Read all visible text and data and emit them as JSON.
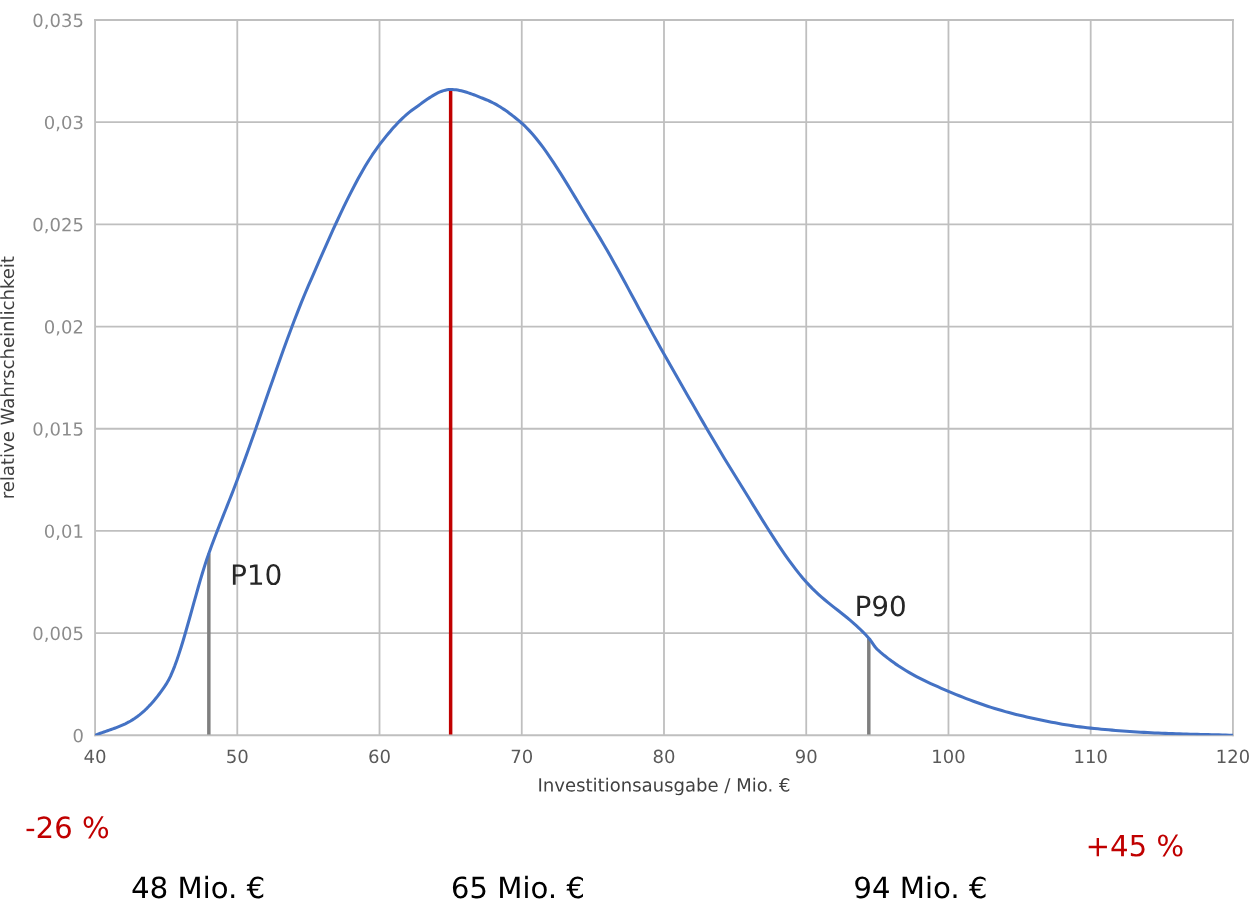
{
  "chart_data": {
    "type": "line",
    "xlabel": "Investitionsausgabe / Mio. €",
    "ylabel": "relative Wahrscheinlichkeit",
    "series": [
      {
        "color": "#4472c4",
        "x": [
          40,
          42.5,
          45,
          48,
          50,
          55,
          60,
          62.5,
          65,
          67.5,
          70,
          75,
          80,
          85,
          90,
          94.4,
          95,
          100,
          105,
          110,
          115,
          120
        ],
        "values": [
          0,
          0.0007,
          0.0025,
          0.0089,
          0.0125,
          0.022,
          0.0289,
          0.0307,
          0.0316,
          0.0311,
          0.02995,
          0.0249,
          0.01866,
          0.0127,
          0.0075,
          0.00475,
          0.0042,
          0.00215,
          0.00098,
          0.00035,
          0.0001,
          0
        ]
      }
    ],
    "ref_lines": [
      {
        "axis": "x",
        "value": 48,
        "label": "P10",
        "color": "#7f7f7f"
      },
      {
        "axis": "x",
        "value": 65,
        "color": "#c00000"
      },
      {
        "axis": "x",
        "value": 94.4,
        "label": "P90",
        "color": "#7f7f7f"
      }
    ],
    "xlim": [
      40,
      120
    ],
    "xticks": [
      40,
      50,
      60,
      70,
      80,
      90,
      100,
      110,
      120
    ],
    "ylim": [
      0,
      0.035
    ],
    "yticks": [
      {
        "value": 0,
        "label": "0"
      },
      {
        "value": 0.005,
        "label": "0,005"
      },
      {
        "value": 0.01,
        "label": "0,01"
      },
      {
        "value": 0.015,
        "label": "0,015"
      },
      {
        "value": 0.02,
        "label": "0,02"
      },
      {
        "value": 0.025,
        "label": "0,025"
      },
      {
        "value": 0.03,
        "label": "0,03"
      },
      {
        "value": 0.035,
        "label": "0,035"
      }
    ],
    "grid": true,
    "marker": "none",
    "line_style": "solid",
    "legend": false,
    "annotations": [
      "-26 %",
      "+45 %",
      "48 Mio. €",
      "65 Mio. €",
      "94 Mio. €"
    ]
  }
}
